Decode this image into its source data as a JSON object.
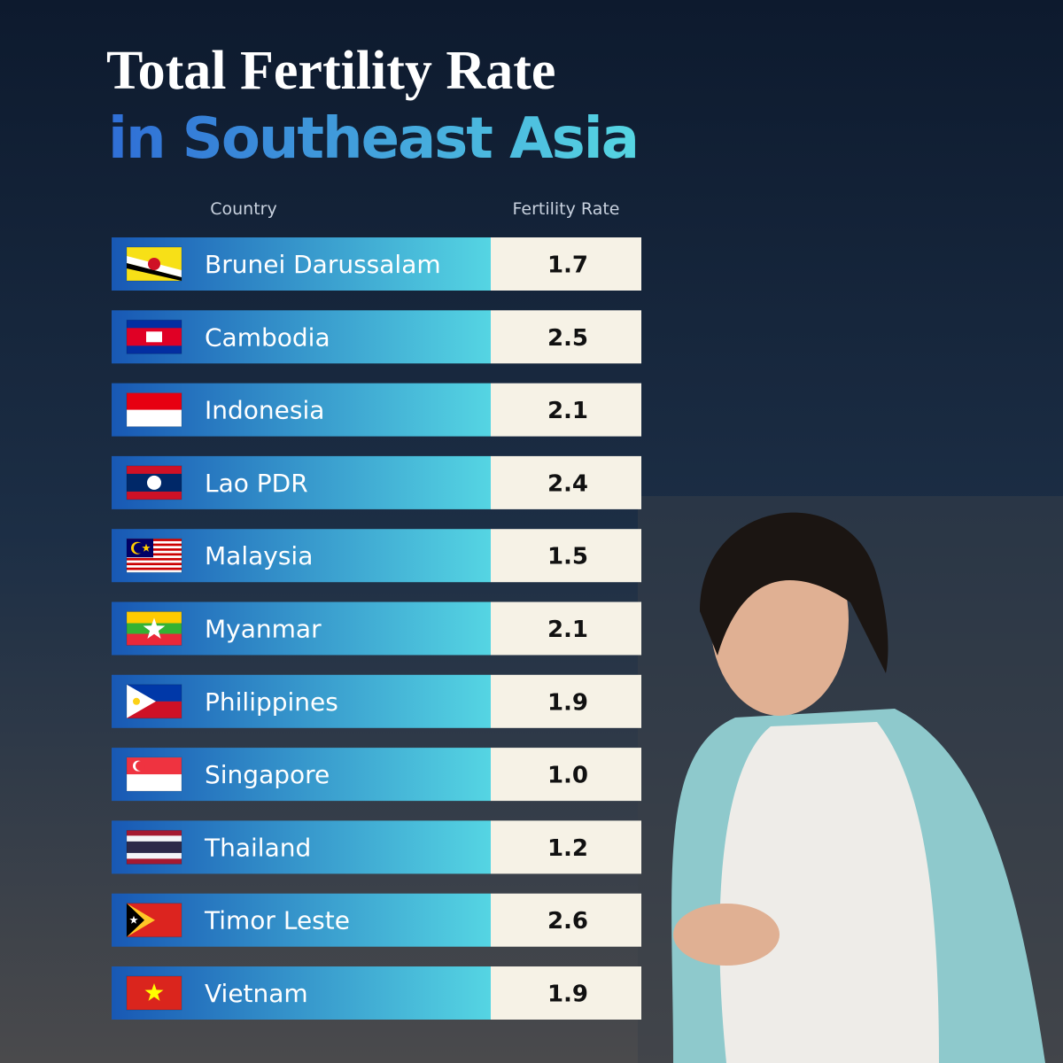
{
  "title": {
    "line1": "Total Fertility Rate",
    "line2": "in Southeast Asia"
  },
  "table": {
    "header": [
      "Country",
      "Fertility Rate"
    ],
    "rows": [
      [
        "Brunei Darussalam",
        "1.7"
      ],
      [
        "Cambodia",
        "2.5"
      ],
      [
        "Indonesia",
        "2.1"
      ],
      [
        "Lao PDR",
        "2.4"
      ],
      [
        "Malaysia",
        "1.5"
      ],
      [
        "Myanmar",
        "2.1"
      ],
      [
        "Philippines",
        "1.9"
      ],
      [
        "Singapore",
        "1.0"
      ],
      [
        "Thailand",
        "1.2"
      ],
      [
        "Timor Leste",
        "2.6"
      ],
      [
        "Vietnam",
        "1.9"
      ]
    ]
  }
}
